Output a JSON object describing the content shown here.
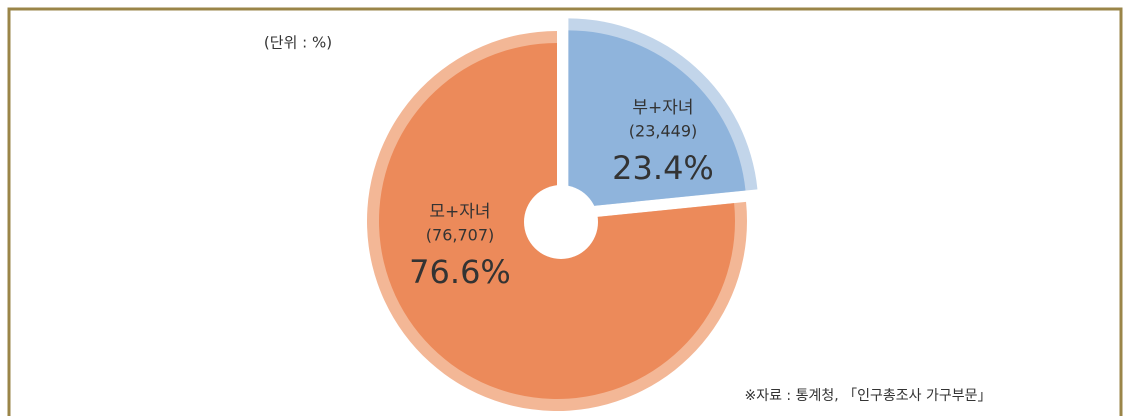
{
  "chart_data": {
    "type": "pie",
    "unit_label": "(단위 : %)",
    "categories": [
      "부+자녀",
      "모+자녀"
    ],
    "values": [
      23.4,
      76.6
    ],
    "value_labels": [
      "23.4%",
      "76.6%"
    ],
    "counts": [
      23449,
      76707
    ],
    "count_labels": [
      "(23,449)",
      "(76,707)"
    ],
    "colors": [
      "#8fb4dc",
      "#ec8a5a"
    ],
    "rim_colors": [
      "#c2d5ea",
      "#f3b796"
    ],
    "exploded": [
      true,
      false
    ],
    "source": "※자료 : 통계청, 「인구총조사 가구부문」"
  }
}
